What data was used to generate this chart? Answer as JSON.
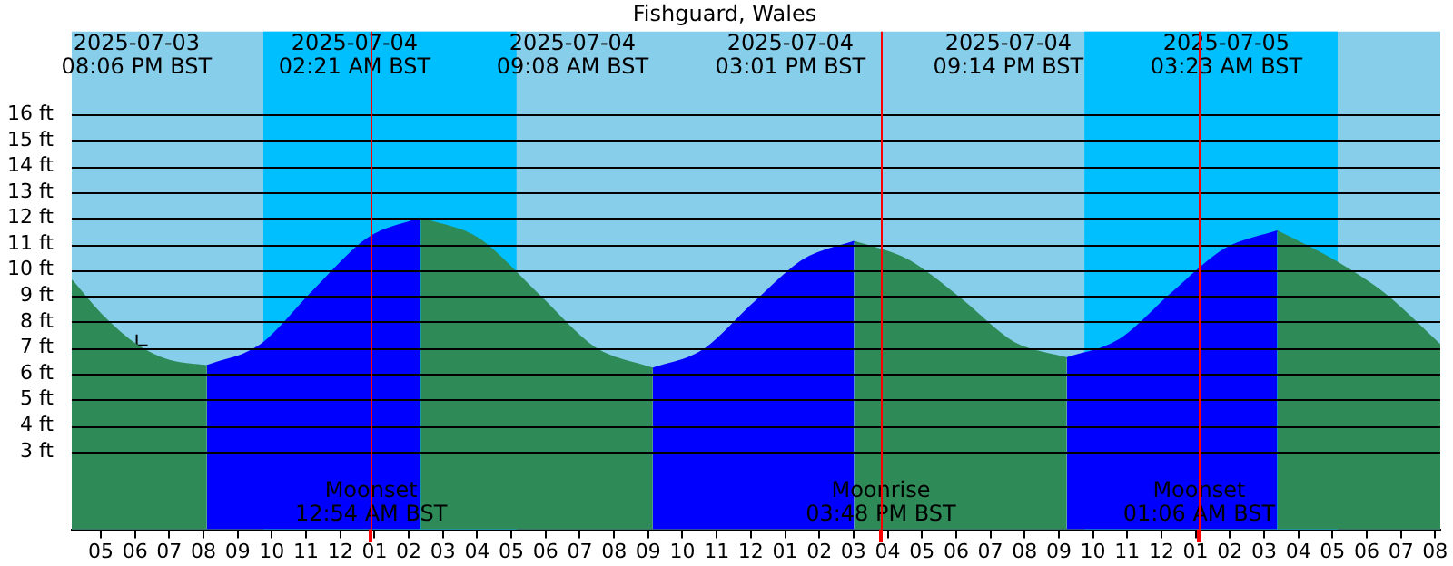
{
  "chart_data": {
    "type": "area",
    "title": "Fishguard, Wales",
    "xlim": [
      "2025-07-03T16:09",
      "2025-07-05T08:09"
    ],
    "xticks": [
      {
        "value": "2025-07-03T17:00",
        "label": "05"
      },
      {
        "value": "2025-07-03T18:00",
        "label": "06"
      },
      {
        "value": "2025-07-03T19:00",
        "label": "07"
      },
      {
        "value": "2025-07-03T20:00",
        "label": "08"
      },
      {
        "value": "2025-07-03T21:00",
        "label": "09"
      },
      {
        "value": "2025-07-03T22:00",
        "label": "10"
      },
      {
        "value": "2025-07-03T23:00",
        "label": "11"
      },
      {
        "value": "2025-07-04T00:00",
        "label": "12"
      },
      {
        "value": "2025-07-04T01:00",
        "label": "01"
      },
      {
        "value": "2025-07-04T02:00",
        "label": "02"
      },
      {
        "value": "2025-07-04T03:00",
        "label": "03"
      },
      {
        "value": "2025-07-04T04:00",
        "label": "04"
      },
      {
        "value": "2025-07-04T05:00",
        "label": "05"
      },
      {
        "value": "2025-07-04T06:00",
        "label": "06"
      },
      {
        "value": "2025-07-04T07:00",
        "label": "07"
      },
      {
        "value": "2025-07-04T08:00",
        "label": "08"
      },
      {
        "value": "2025-07-04T09:00",
        "label": "09"
      },
      {
        "value": "2025-07-04T10:00",
        "label": "10"
      },
      {
        "value": "2025-07-04T11:00",
        "label": "11"
      },
      {
        "value": "2025-07-04T12:00",
        "label": "12"
      },
      {
        "value": "2025-07-04T13:00",
        "label": "01"
      },
      {
        "value": "2025-07-04T14:00",
        "label": "02"
      },
      {
        "value": "2025-07-04T15:00",
        "label": "03"
      },
      {
        "value": "2025-07-04T16:00",
        "label": "04"
      },
      {
        "value": "2025-07-04T17:00",
        "label": "05"
      },
      {
        "value": "2025-07-04T18:00",
        "label": "06"
      },
      {
        "value": "2025-07-04T19:00",
        "label": "07"
      },
      {
        "value": "2025-07-04T20:00",
        "label": "08"
      },
      {
        "value": "2025-07-04T21:00",
        "label": "09"
      },
      {
        "value": "2025-07-04T22:00",
        "label": "10"
      },
      {
        "value": "2025-07-04T23:00",
        "label": "11"
      },
      {
        "value": "2025-07-05T00:00",
        "label": "12"
      },
      {
        "value": "2025-07-05T01:00",
        "label": "01"
      },
      {
        "value": "2025-07-05T02:00",
        "label": "02"
      },
      {
        "value": "2025-07-05T03:00",
        "label": "03"
      },
      {
        "value": "2025-07-05T04:00",
        "label": "04"
      },
      {
        "value": "2025-07-05T05:00",
        "label": "05"
      },
      {
        "value": "2025-07-05T06:00",
        "label": "06"
      },
      {
        "value": "2025-07-05T07:00",
        "label": "07"
      },
      {
        "value": "2025-07-05T08:00",
        "label": "08"
      }
    ],
    "ylim": [
      0,
      19.2
    ],
    "yticks": [
      {
        "value": 3,
        "label": "3 ft"
      },
      {
        "value": 4,
        "label": "4 ft"
      },
      {
        "value": 5,
        "label": "5 ft"
      },
      {
        "value": 6,
        "label": "6 ft"
      },
      {
        "value": 7,
        "label": "7 ft"
      },
      {
        "value": 8,
        "label": "8 ft"
      },
      {
        "value": 9,
        "label": "9 ft"
      },
      {
        "value": 10,
        "label": "10 ft"
      },
      {
        "value": 11,
        "label": "11 ft"
      },
      {
        "value": 12,
        "label": "12 ft"
      },
      {
        "value": 13,
        "label": "13 ft"
      },
      {
        "value": 14,
        "label": "14 ft"
      },
      {
        "value": 15,
        "label": "15 ft"
      },
      {
        "value": 16,
        "label": "16 ft"
      }
    ],
    "grid": "y",
    "legend": false,
    "bands": [
      {
        "axis": "x",
        "from": "2025-07-03T21:45",
        "to": "2025-07-04T05:09",
        "color": "#00bfff"
      },
      {
        "axis": "x",
        "from": "2025-07-04T21:45",
        "to": "2025-07-05T05:09",
        "color": "#00bfff"
      }
    ],
    "ref_lines": [
      {
        "axis": "x",
        "value": "2025-07-04T00:54",
        "label": "Moonset\n12:54 AM BST",
        "color": "#ff0000"
      },
      {
        "axis": "x",
        "value": "2025-07-04T15:48",
        "label": "Moonrise\n03:48 PM BST",
        "color": "#ff0000"
      },
      {
        "axis": "x",
        "value": "2025-07-05T01:06",
        "label": "Moonset\n01:06 AM BST",
        "color": "#ff0000"
      }
    ],
    "series": [
      {
        "color": "#2e8b57",
        "x": [
          "2025-07-03T16:09",
          "2025-07-03T17:00",
          "2025-07-03T18:03",
          "2025-07-03T19:00",
          "2025-07-03T20:06"
        ],
        "values": [
          9.6,
          8.3,
          7.1,
          6.5,
          6.3
        ]
      },
      {
        "color": "#0000ff",
        "x": [
          "2025-07-03T20:06",
          "2025-07-03T21:40",
          "2025-07-03T23:13",
          "2025-07-04T00:47",
          "2025-07-04T02:21"
        ],
        "values": [
          6.3,
          7.1,
          9.2,
          11.2,
          12.0
        ]
      },
      {
        "color": "#2e8b57",
        "x": [
          "2025-07-04T02:21",
          "2025-07-04T04:03",
          "2025-07-04T05:45",
          "2025-07-04T07:26",
          "2025-07-04T09:08"
        ],
        "values": [
          12.0,
          11.2,
          9.1,
          7.0,
          6.2
        ]
      },
      {
        "color": "#0000ff",
        "x": [
          "2025-07-04T09:08",
          "2025-07-04T10:36",
          "2025-07-04T12:04",
          "2025-07-04T13:33",
          "2025-07-04T15:01"
        ],
        "values": [
          6.2,
          6.9,
          8.7,
          10.4,
          11.1
        ]
      },
      {
        "color": "#2e8b57",
        "x": [
          "2025-07-04T15:01",
          "2025-07-04T16:34",
          "2025-07-04T18:07",
          "2025-07-04T19:41",
          "2025-07-04T21:14"
        ],
        "values": [
          11.1,
          10.4,
          8.9,
          7.2,
          6.6
        ]
      },
      {
        "color": "#0000ff",
        "x": [
          "2025-07-04T21:14",
          "2025-07-04T22:46",
          "2025-07-05T00:18",
          "2025-07-05T01:51",
          "2025-07-05T03:23"
        ],
        "values": [
          6.6,
          7.3,
          9.1,
          10.8,
          11.5
        ]
      },
      {
        "color": "#2e8b57",
        "x": [
          "2025-07-05T03:23",
          "2025-07-05T05:00",
          "2025-07-05T06:30",
          "2025-07-05T08:09"
        ],
        "values": [
          11.5,
          10.4,
          9.1,
          7.1
        ]
      },
      {
        "type": "scatter",
        "marker": "cross",
        "color": "#000000",
        "x": [
          "2025-07-03T18:03"
        ],
        "values": [
          7.1
        ]
      }
    ],
    "annotations": [
      "2025-07-03\n08:06 PM BST",
      "2025-07-04\n02:21 AM BST",
      "2025-07-04\n09:08 AM BST",
      "2025-07-04\n03:01 PM BST",
      "2025-07-04\n09:14 PM BST",
      "2025-07-05\n03:23 AM BST"
    ]
  }
}
